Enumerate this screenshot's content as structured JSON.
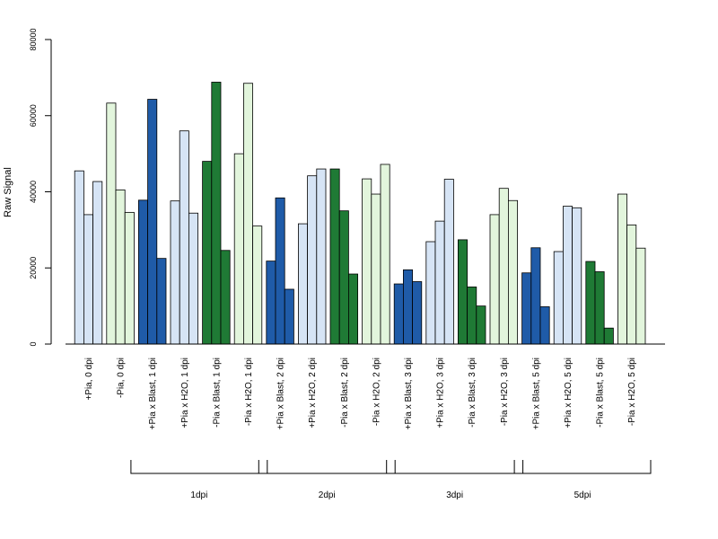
{
  "chart_data": {
    "type": "bar",
    "ylabel": "Raw Signal",
    "xlabel": "",
    "ylim": [
      0,
      80000
    ],
    "yticks": [
      "0",
      "20000",
      "40000",
      "60000",
      "80000"
    ],
    "grid": false,
    "categories": [
      "+Pia, 0 dpi",
      "-Pia, 0 dpi",
      "+Pia x Blast, 1 dpi",
      "+Pia x H2O, 1 dpi",
      "-Pia x Blast, 1 dpi",
      "-Pia x H2O, 1 dpi",
      "+Pia x Blast, 2 dpi",
      "+Pia x H2O, 2 dpi",
      "-Pia x Blast, 2 dpi",
      "-Pia x H2O, 2 dpi",
      "+Pia x Blast, 3 dpi",
      "+Pia x H2O, 3 dpi",
      "-Pia x Blast, 3 dpi",
      "-Pia x H2O, 3 dpi",
      "+Pia x Blast, 5 dpi",
      "+Pia x H2O, 5 dpi",
      "-Pia x Blast, 5 dpi",
      "-Pia x H2O, 5 dpi"
    ],
    "category_colors": [
      "#d6e4f5",
      "#e2f5dc",
      "#1f5ba8",
      "#d6e4f5",
      "#1f7a35",
      "#e2f5dc",
      "#1f5ba8",
      "#d6e4f5",
      "#1f7a35",
      "#e2f5dc",
      "#1f5ba8",
      "#d6e4f5",
      "#1f7a35",
      "#e2f5dc",
      "#1f5ba8",
      "#d6e4f5",
      "#1f7a35",
      "#e2f5dc"
    ],
    "replicates": [
      [
        45500,
        34000,
        42700
      ],
      [
        63300,
        40500,
        34600
      ],
      [
        37800,
        64300,
        22500
      ],
      [
        37600,
        56000,
        34400
      ],
      [
        48000,
        68800,
        24600
      ],
      [
        50000,
        68500,
        31000
      ],
      [
        21800,
        38400,
        14400
      ],
      [
        31600,
        44200,
        46000
      ],
      [
        46000,
        35000,
        18400
      ],
      [
        43400,
        39400,
        47200
      ],
      [
        15800,
        19500,
        16400
      ],
      [
        26900,
        32300,
        43300
      ],
      [
        27400,
        15000,
        10000
      ],
      [
        34000,
        40900,
        37700
      ],
      [
        18700,
        25300,
        9800
      ],
      [
        24300,
        36200,
        35800
      ],
      [
        21700,
        19000,
        4200
      ],
      [
        39400,
        31300,
        25200
      ]
    ],
    "groups": [
      {
        "label": "1dpi",
        "from": 2,
        "to": 5
      },
      {
        "label": "2dpi",
        "from": 6,
        "to": 9
      },
      {
        "label": "3dpi",
        "from": 10,
        "to": 13
      },
      {
        "label": "5dpi",
        "from": 14,
        "to": 17
      }
    ]
  }
}
